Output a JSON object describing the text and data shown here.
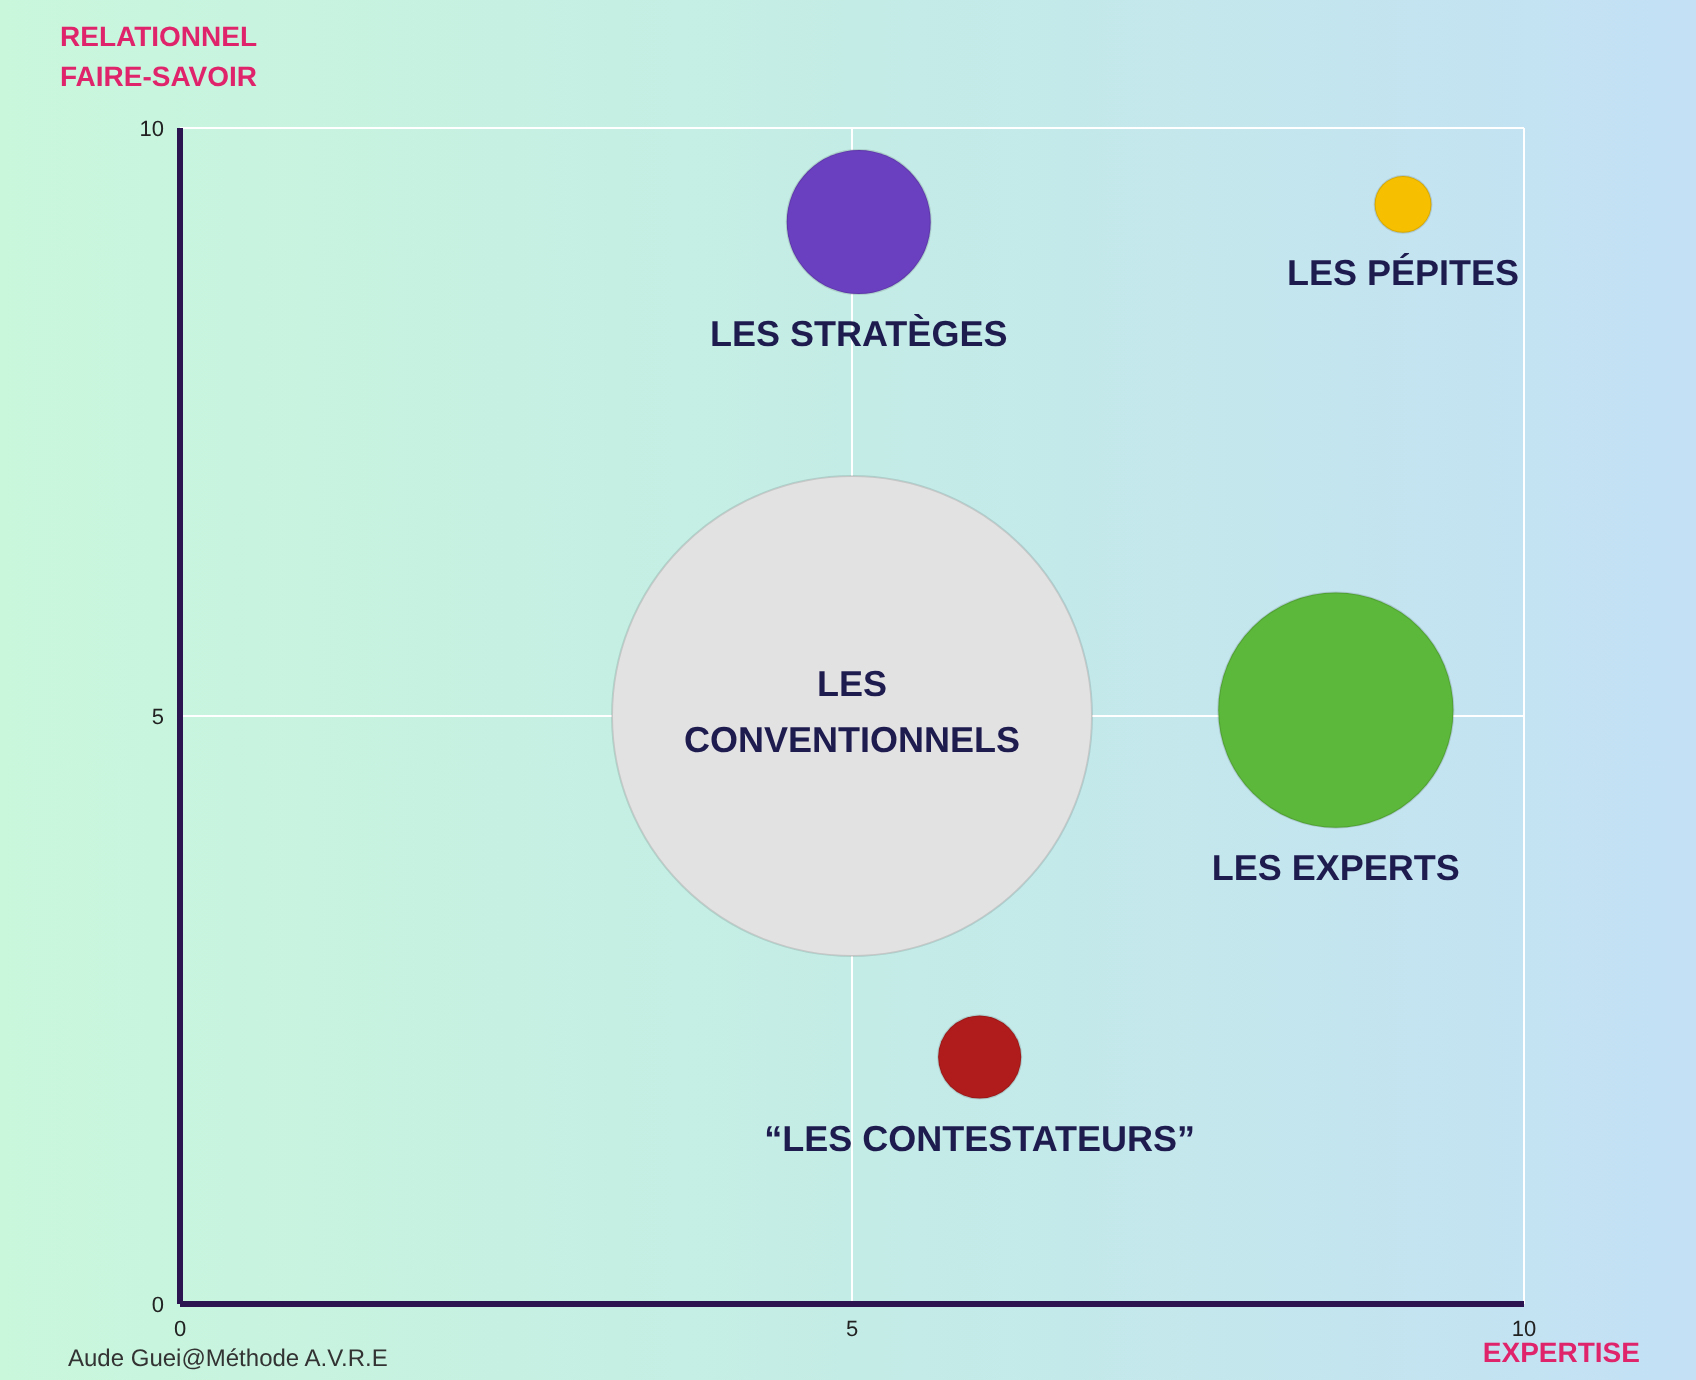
{
  "chart_data": {
    "type": "bubble",
    "xlabel": "EXPERTISE",
    "ylabel": "RELATIONNEL\nFAIRE-SAVOIR",
    "xlim": [
      0,
      10
    ],
    "ylim": [
      0,
      10
    ],
    "xticks": [
      0,
      5,
      10
    ],
    "yticks": [
      0,
      5,
      10
    ],
    "grid": true,
    "legend": false,
    "annotations": [
      "Aude Guei@Méthode A.V.R.E"
    ],
    "series": [
      {
        "name": "LES STRATÈGES",
        "color": "#6a3fc0",
        "x": [
          5.05
        ],
        "values": [
          9.2
        ],
        "sizes": [
          0.09
        ]
      },
      {
        "name": "LES PÉPITES",
        "color": "#f6c000",
        "x": [
          9.1
        ],
        "values": [
          9.35
        ],
        "sizes": [
          0.014
        ]
      },
      {
        "name": "LES CONVENTIONNELS",
        "color": "#e2e2e2",
        "x": [
          5
        ],
        "values": [
          5
        ],
        "sizes": [
          1
        ]
      },
      {
        "name": "LES EXPERTS",
        "color": "#5cb83a",
        "x": [
          8.6
        ],
        "values": [
          5.05
        ],
        "sizes": [
          0.24
        ]
      },
      {
        "name": "“LES CONTESTATEURS”",
        "color": "#b01c1c",
        "x": [
          5.95
        ],
        "values": [
          2.1
        ],
        "sizes": [
          0.03
        ]
      }
    ]
  }
}
